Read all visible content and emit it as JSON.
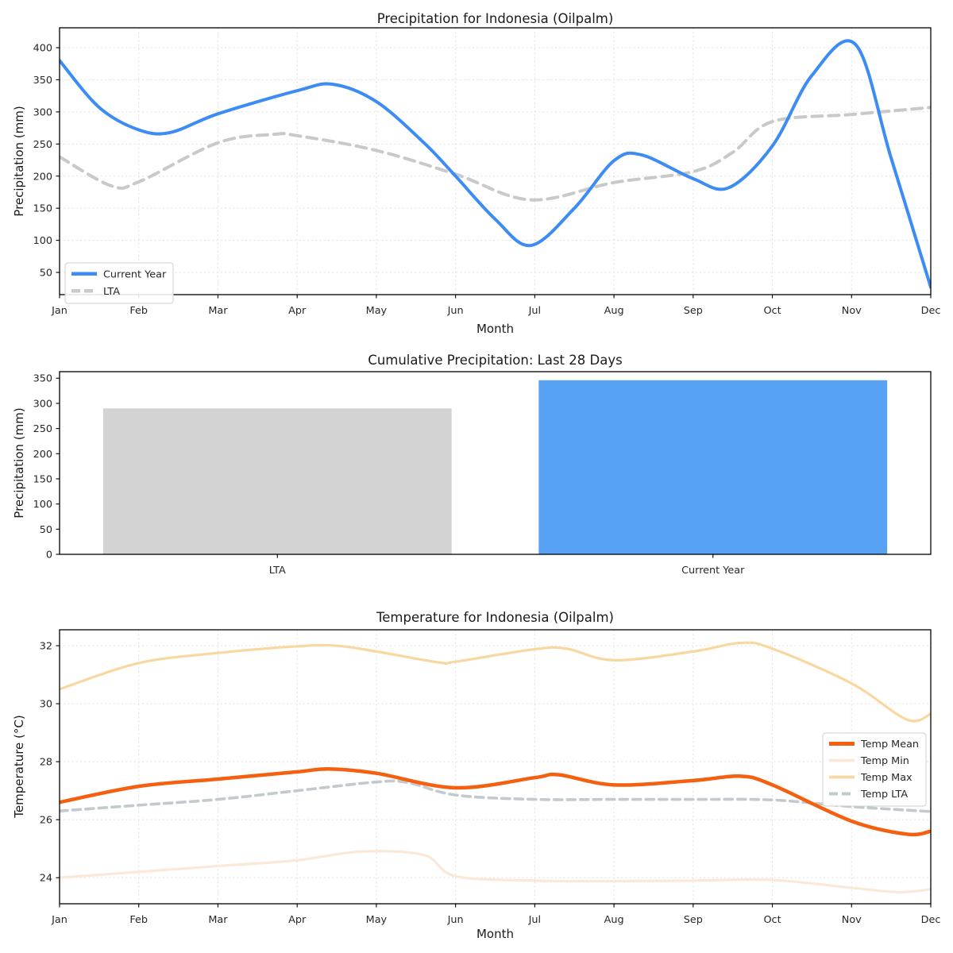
{
  "figure": {
    "background": "#ffffff",
    "text_color": "#1b1b1b",
    "grid_color": "#e1e1e1"
  },
  "chart_data": [
    {
      "type": "line",
      "title": "Precipitation for Indonesia (Oilpalm)",
      "xlabel": "Month",
      "ylabel": "Precipitation (mm)",
      "x_ticks": [
        "Jan",
        "Feb",
        "Mar",
        "Apr",
        "May",
        "Jun",
        "Jul",
        "Aug",
        "Sep",
        "Oct",
        "Nov",
        "Dec"
      ],
      "y_ticks": [
        50,
        100,
        150,
        200,
        250,
        300,
        350,
        400
      ],
      "xlim": [
        0,
        11
      ],
      "ylim": [
        15.4,
        431
      ],
      "grid": true,
      "legend": {
        "position": "lower-left",
        "entries": [
          "Current Year",
          "LTA"
        ]
      },
      "series": [
        {
          "name": "Current Year",
          "color": "#3C8CF4",
          "width": 4,
          "dash": null,
          "points": [
            [
              0,
              380
            ],
            [
              0.5,
              307
            ],
            [
              1,
              272
            ],
            [
              1.4,
              268
            ],
            [
              2,
              297
            ],
            [
              3,
              333
            ],
            [
              3.45,
              343
            ],
            [
              4,
              316
            ],
            [
              4.6,
              252
            ],
            [
              5,
              200
            ],
            [
              5.5,
              133
            ],
            [
              5.95,
              92
            ],
            [
              6.5,
              150
            ],
            [
              7,
              224
            ],
            [
              7.35,
              233
            ],
            [
              8,
              196
            ],
            [
              8.45,
              182
            ],
            [
              9,
              247
            ],
            [
              9.5,
              357
            ],
            [
              10.05,
              405
            ],
            [
              10.5,
              228
            ],
            [
              11,
              27
            ]
          ]
        },
        {
          "name": "LTA",
          "color": "#C9C9C9",
          "width": 4,
          "dash": [
            13,
            8
          ],
          "points": [
            [
              0,
              230
            ],
            [
              0.65,
              185
            ],
            [
              1,
              191
            ],
            [
              2,
              252
            ],
            [
              2.7,
              265
            ],
            [
              3,
              263
            ],
            [
              4,
              240
            ],
            [
              5,
              203
            ],
            [
              5.95,
              163
            ],
            [
              7,
              190
            ],
            [
              8,
              207
            ],
            [
              8.5,
              237
            ],
            [
              9,
              285
            ],
            [
              10,
              296
            ],
            [
              11,
              307
            ]
          ]
        }
      ]
    },
    {
      "type": "bar",
      "title": "Cumulative Precipitation: Last 28 Days",
      "xlabel": "",
      "ylabel": "Precipitation (mm)",
      "categories": [
        "LTA",
        "Current Year"
      ],
      "values": [
        290,
        346
      ],
      "colors": [
        "#D3D3D3",
        "#57A2F3"
      ],
      "bar_width": 0.8,
      "y_ticks": [
        0,
        50,
        100,
        150,
        200,
        250,
        300,
        350
      ],
      "xlim": [
        -0.5,
        1.5
      ],
      "ylim": [
        0,
        363
      ],
      "grid": false
    },
    {
      "type": "line",
      "title": "Temperature for Indonesia (Oilpalm)",
      "xlabel": "Month",
      "ylabel": "Temperature (°C)",
      "x_ticks": [
        "Jan",
        "Feb",
        "Mar",
        "Apr",
        "May",
        "Jun",
        "Jul",
        "Aug",
        "Sep",
        "Oct",
        "Nov",
        "Dec"
      ],
      "y_ticks": [
        24,
        26,
        28,
        30,
        32
      ],
      "xlim": [
        0,
        11
      ],
      "ylim": [
        23.1,
        32.55
      ],
      "grid": true,
      "legend": {
        "position": "center-right",
        "entries": [
          "Temp Mean",
          "Temp Min",
          "Temp Max",
          "Temp LTA"
        ]
      },
      "series": [
        {
          "name": "Temp Mean",
          "color": "#F4600F",
          "width": 4.5,
          "dash": null,
          "points": [
            [
              0,
              26.6
            ],
            [
              1,
              27.15
            ],
            [
              2,
              27.4
            ],
            [
              3,
              27.65
            ],
            [
              3.4,
              27.75
            ],
            [
              4,
              27.6
            ],
            [
              5,
              27.1
            ],
            [
              6,
              27.45
            ],
            [
              6.3,
              27.55
            ],
            [
              7,
              27.2
            ],
            [
              8,
              27.35
            ],
            [
              8.6,
              27.5
            ],
            [
              9,
              27.2
            ],
            [
              10,
              25.95
            ],
            [
              10.7,
              25.5
            ],
            [
              11,
              25.6
            ]
          ]
        },
        {
          "name": "Temp Min",
          "color": "#FBE8D6",
          "width": 3.2,
          "dash": null,
          "points": [
            [
              0,
              24.0
            ],
            [
              1,
              24.2
            ],
            [
              2,
              24.4
            ],
            [
              3,
              24.6
            ],
            [
              3.8,
              24.9
            ],
            [
              4.6,
              24.78
            ],
            [
              5,
              24.05
            ],
            [
              6,
              23.9
            ],
            [
              7,
              23.88
            ],
            [
              8,
              23.9
            ],
            [
              9,
              23.92
            ],
            [
              10,
              23.65
            ],
            [
              10.6,
              23.5
            ],
            [
              11,
              23.6
            ]
          ]
        },
        {
          "name": "Temp Max",
          "color": "#F8D7A1",
          "width": 3.2,
          "dash": null,
          "points": [
            [
              0,
              30.5
            ],
            [
              1,
              31.4
            ],
            [
              2,
              31.75
            ],
            [
              3,
              31.98
            ],
            [
              3.5,
              32.0
            ],
            [
              4,
              31.8
            ],
            [
              4.8,
              31.42
            ],
            [
              5,
              31.45
            ],
            [
              6,
              31.88
            ],
            [
              6.4,
              31.9
            ],
            [
              7,
              31.5
            ],
            [
              8,
              31.8
            ],
            [
              8.6,
              32.1
            ],
            [
              9,
              31.9
            ],
            [
              10,
              30.7
            ],
            [
              10.7,
              29.45
            ],
            [
              11,
              29.65
            ]
          ]
        },
        {
          "name": "Temp LTA",
          "color": "#C3CACD",
          "width": 3.6,
          "dash": [
            10,
            6.5
          ],
          "points": [
            [
              0,
              26.3
            ],
            [
              1,
              26.5
            ],
            [
              2,
              26.7
            ],
            [
              3,
              27.0
            ],
            [
              4,
              27.3
            ],
            [
              4.4,
              27.28
            ],
            [
              5,
              26.85
            ],
            [
              6,
              26.7
            ],
            [
              7,
              26.7
            ],
            [
              8,
              26.7
            ],
            [
              9,
              26.68
            ],
            [
              10,
              26.45
            ],
            [
              11,
              26.28
            ]
          ]
        }
      ]
    }
  ]
}
